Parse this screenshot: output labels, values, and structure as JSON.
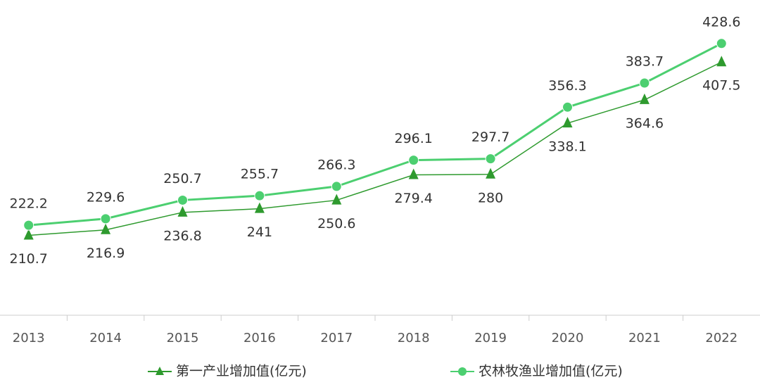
{
  "chart_data": {
    "type": "line",
    "categories": [
      "2013",
      "2014",
      "2015",
      "2016",
      "2017",
      "2018",
      "2019",
      "2020",
      "2021",
      "2022"
    ],
    "series": [
      {
        "name": "第一产业增加值(亿元)",
        "color": "#2e9a2e",
        "marker": "triangle",
        "values": [
          210.7,
          216.9,
          236.8,
          241,
          250.6,
          279.4,
          280,
          338.1,
          364.6,
          407.5
        ]
      },
      {
        "name": "农林牧渔业增加值(亿元)",
        "color": "#4ccf70",
        "marker": "circle",
        "values": [
          222.2,
          229.6,
          250.7,
          255.7,
          266.3,
          296.1,
          297.7,
          356.3,
          383.7,
          428.6
        ]
      }
    ],
    "ylim": [
      120,
      470
    ],
    "legend": "bottom"
  }
}
